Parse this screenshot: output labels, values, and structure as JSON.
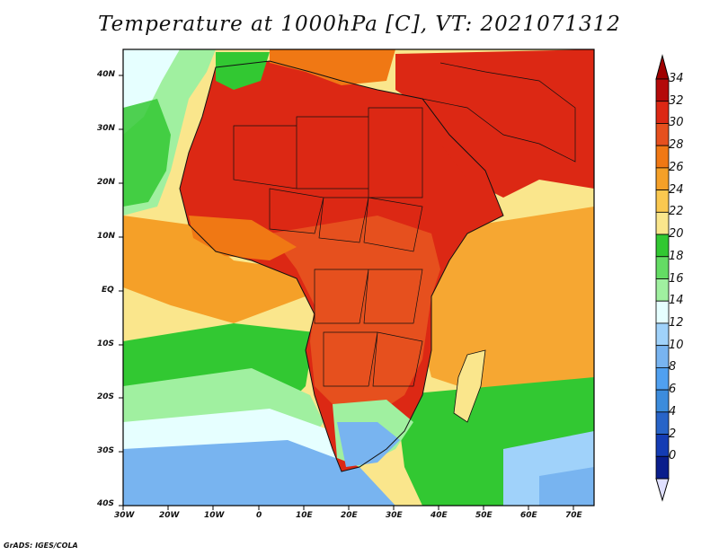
{
  "title": "Temperature at 1000hPa [C], VT: 2021071312",
  "footer": "GrADS: IGES/COLA",
  "map": {
    "lon_labels": [
      "30W",
      "20W",
      "10W",
      "0",
      "10E",
      "20E",
      "30E",
      "40E",
      "50E",
      "60E",
      "70E"
    ],
    "lat_labels": [
      "40N",
      "30N",
      "20N",
      "10N",
      "EQ",
      "10S",
      "20S",
      "30S",
      "40S"
    ]
  },
  "colorbar": {
    "labels": [
      "34",
      "32",
      "30",
      "28",
      "26",
      "24",
      "22",
      "20",
      "18",
      "16",
      "14",
      "12",
      "10",
      "8",
      "6",
      "4",
      "2",
      "0"
    ],
    "colors": [
      "#b40a0a",
      "#dc2814",
      "#e6501e",
      "#f07814",
      "#f5a028",
      "#fac850",
      "#fae68c",
      "#32c832",
      "#64dc64",
      "#a0f0a0",
      "#e6ffff",
      "#a0d2fa",
      "#78b4f0",
      "#50a0f0",
      "#3c8cdc",
      "#2864c8",
      "#143cb4",
      "#0a1e8c"
    ],
    "top_arrow_color": "#a00000",
    "bottom_arrow_color": "#e0e0ff"
  },
  "legend_colors": {
    "ocean_cool": "#46a0f0",
    "ocean_mild": "#a0f0a0",
    "ocean_warm": "#fae68c",
    "land_hot": "#dc2814",
    "land_warm": "#e6501e"
  }
}
